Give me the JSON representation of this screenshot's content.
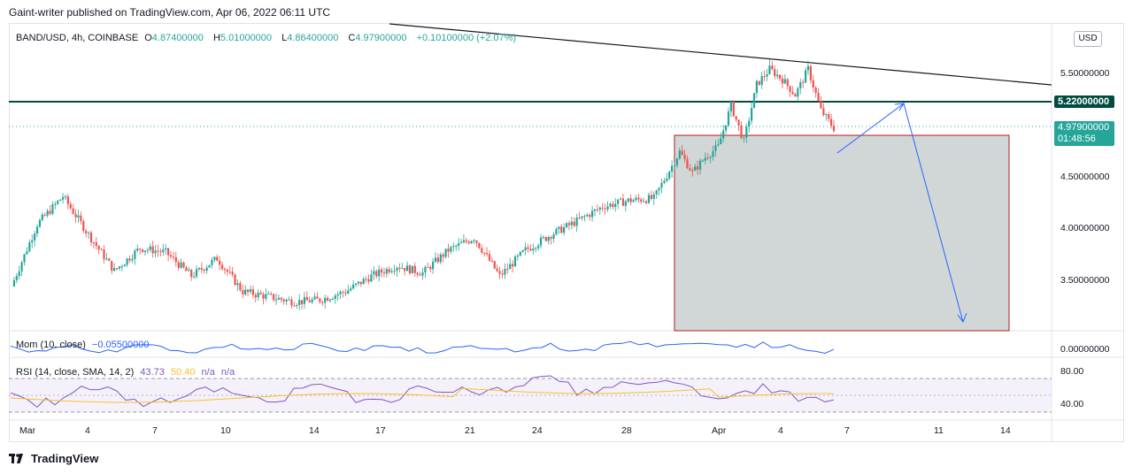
{
  "header": {
    "published_line": "Gaint-writer published on TradingView.com, Apr 06, 2022 06:11 UTC"
  },
  "symbol_legend": {
    "symbol": "BAND/USD, 4h, COINBASE",
    "open_label": "O",
    "open": "4.87400000",
    "high_label": "H",
    "high": "5.01000000",
    "low_label": "L",
    "low": "4.86400000",
    "close_label": "C",
    "close": "4.97900000",
    "change": "+0.10100000 (+2.07%)"
  },
  "currency_button": "USD",
  "price_axis": {
    "ticks": [
      {
        "label": "5.50000000",
        "value": 5.5
      },
      {
        "label": "4.50000000",
        "value": 4.5
      },
      {
        "label": "4.00000000",
        "value": 4.0
      },
      {
        "label": "3.50000000",
        "value": 3.5
      }
    ],
    "resistance_tag": "5.22000000",
    "last_price_tag": "4.97900000",
    "countdown": "01:48:56"
  },
  "mom_indicator": {
    "label": "Mom (10, close)",
    "value": "−0.05500000",
    "axis_label": "0.00000000"
  },
  "rsi_indicator": {
    "label": "RSI (14, close, SMA, 14, 2)",
    "rsi_value": "43.73",
    "sma_value": "50.40",
    "na1": "n/a",
    "na2": "n/a",
    "axis_upper": "80.00",
    "axis_lower": "40.00"
  },
  "time_axis": [
    "Mar",
    "4",
    "7",
    "10",
    "14",
    "17",
    "21",
    "24",
    "28",
    "Apr",
    "4",
    "7",
    "11",
    "14"
  ],
  "colors": {
    "up": "#26a69a",
    "down": "#ef5350",
    "resistance": "#004d40",
    "mom": "#2962ff",
    "rsi": "#7e57c2",
    "sma": "#fbc02d",
    "box": "#b2bcbc",
    "arrow": "#2962ff"
  },
  "footer": {
    "brand": "TradingView"
  },
  "chart_data": {
    "type": "candlestick",
    "symbol": "BAND/USD",
    "interval": "4h",
    "ylim": [
      3.0,
      5.9
    ],
    "price_points": [
      [
        0,
        3.45
      ],
      [
        10,
        4.05
      ],
      [
        20,
        4.32
      ],
      [
        30,
        3.95
      ],
      [
        40,
        3.6
      ],
      [
        50,
        3.82
      ],
      [
        60,
        3.78
      ],
      [
        70,
        3.55
      ],
      [
        80,
        3.72
      ],
      [
        90,
        3.4
      ],
      [
        100,
        3.35
      ],
      [
        110,
        3.3
      ],
      [
        120,
        3.32
      ],
      [
        130,
        3.4
      ],
      [
        140,
        3.55
      ],
      [
        150,
        3.65
      ],
      [
        160,
        3.58
      ],
      [
        170,
        3.8
      ],
      [
        180,
        3.92
      ],
      [
        190,
        3.55
      ],
      [
        200,
        3.8
      ],
      [
        210,
        3.95
      ],
      [
        220,
        4.08
      ],
      [
        230,
        4.22
      ],
      [
        240,
        4.28
      ],
      [
        250,
        4.3
      ],
      [
        260,
        4.75
      ],
      [
        265,
        4.55
      ],
      [
        270,
        4.7
      ],
      [
        275,
        4.8
      ],
      [
        280,
        5.2
      ],
      [
        285,
        4.85
      ],
      [
        290,
        5.4
      ],
      [
        295,
        5.55
      ],
      [
        300,
        5.45
      ],
      [
        305,
        5.3
      ],
      [
        310,
        5.55
      ],
      [
        315,
        5.15
      ],
      [
        320,
        4.98
      ]
    ],
    "resistance_level": 5.22,
    "last_price": 4.979
  }
}
